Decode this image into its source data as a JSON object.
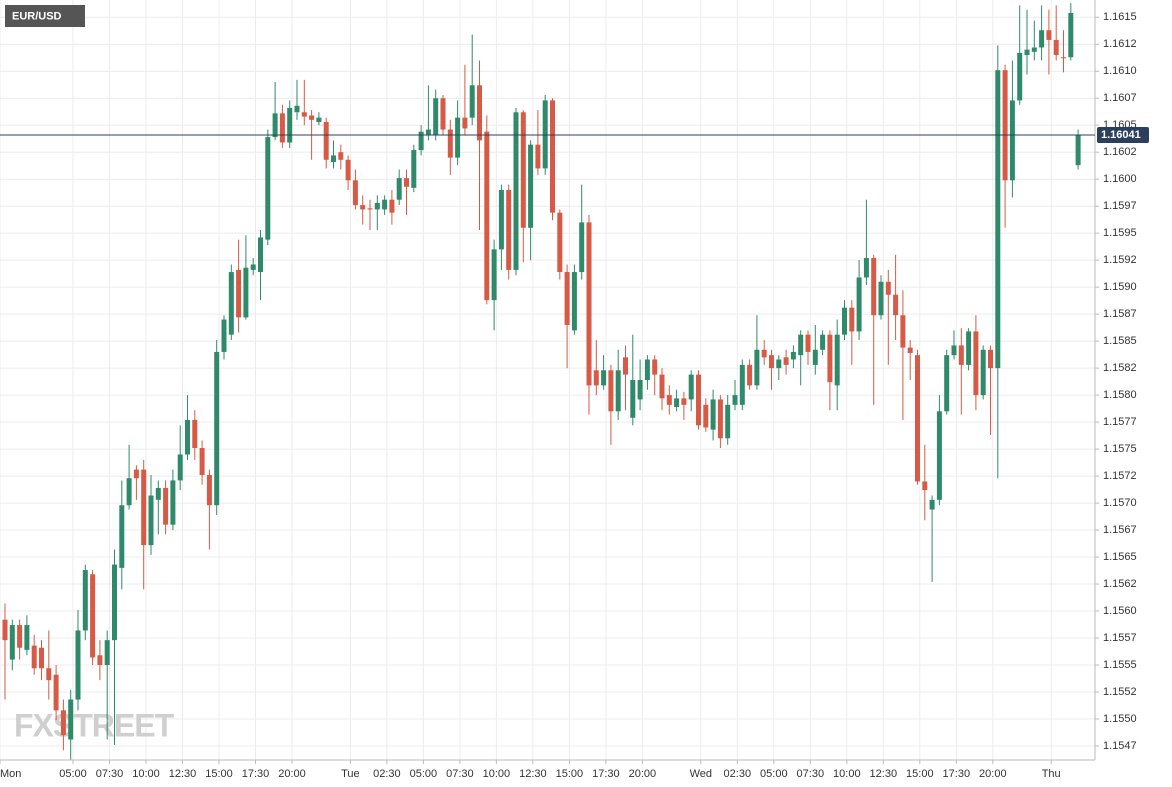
{
  "chart_data": {
    "type": "candlestick",
    "title": "EUR/USD",
    "watermark": "FXSTREET",
    "up_color": "#2f8a6b",
    "down_color": "#d65a45",
    "grid": true,
    "last_price": {
      "value": 1.16041,
      "label": "1.16041"
    },
    "xlim": [
      0,
      75
    ],
    "xticks": [
      {
        "value": 0,
        "label": "Mon"
      },
      {
        "value": 5,
        "label": "05:00"
      },
      {
        "value": 7.5,
        "label": "07:30"
      },
      {
        "value": 10,
        "label": "10:00"
      },
      {
        "value": 12.5,
        "label": "12:30"
      },
      {
        "value": 15,
        "label": "15:00"
      },
      {
        "value": 17.5,
        "label": "17:30"
      },
      {
        "value": 20,
        "label": "20:00"
      },
      {
        "value": 24,
        "label": "Tue"
      },
      {
        "value": 26.5,
        "label": "02:30"
      },
      {
        "value": 29,
        "label": "05:00"
      },
      {
        "value": 31.5,
        "label": "07:30"
      },
      {
        "value": 34,
        "label": "10:00"
      },
      {
        "value": 36.5,
        "label": "12:30"
      },
      {
        "value": 39,
        "label": "15:00"
      },
      {
        "value": 41.5,
        "label": "17:30"
      },
      {
        "value": 44,
        "label": "20:00"
      },
      {
        "value": 48,
        "label": "Wed"
      },
      {
        "value": 50.5,
        "label": "02:30"
      },
      {
        "value": 53,
        "label": "05:00"
      },
      {
        "value": 55.5,
        "label": "07:30"
      },
      {
        "value": 58,
        "label": "10:00"
      },
      {
        "value": 60.5,
        "label": "12:30"
      },
      {
        "value": 63,
        "label": "15:00"
      },
      {
        "value": 65.5,
        "label": "17:30"
      },
      {
        "value": 68,
        "label": "20:00"
      },
      {
        "value": 72,
        "label": "Thu"
      }
    ],
    "ylim": [
      1.15462,
      1.16166
    ],
    "yticks": [
      {
        "value": 1.1615,
        "label": "1.1615"
      },
      {
        "value": 1.16125,
        "label": "1.1612"
      },
      {
        "value": 1.161,
        "label": "1.1610"
      },
      {
        "value": 1.16075,
        "label": "1.1607"
      },
      {
        "value": 1.1605,
        "label": "1.1605"
      },
      {
        "value": 1.16025,
        "label": "1.1602"
      },
      {
        "value": 1.16,
        "label": "1.1600"
      },
      {
        "value": 1.15975,
        "label": "1.1597"
      },
      {
        "value": 1.1595,
        "label": "1.1595"
      },
      {
        "value": 1.15925,
        "label": "1.1592"
      },
      {
        "value": 1.159,
        "label": "1.1590"
      },
      {
        "value": 1.15875,
        "label": "1.1587"
      },
      {
        "value": 1.1585,
        "label": "1.1585"
      },
      {
        "value": 1.15825,
        "label": "1.1582"
      },
      {
        "value": 1.158,
        "label": "1.1580"
      },
      {
        "value": 1.15775,
        "label": "1.1577"
      },
      {
        "value": 1.1575,
        "label": "1.1575"
      },
      {
        "value": 1.15725,
        "label": "1.1572"
      },
      {
        "value": 1.157,
        "label": "1.1570"
      },
      {
        "value": 1.15675,
        "label": "1.1567"
      },
      {
        "value": 1.1565,
        "label": "1.1565"
      },
      {
        "value": 1.15625,
        "label": "1.1562"
      },
      {
        "value": 1.156,
        "label": "1.1560"
      },
      {
        "value": 1.15575,
        "label": "1.1557"
      },
      {
        "value": 1.1555,
        "label": "1.1555"
      },
      {
        "value": 1.15525,
        "label": "1.1552"
      },
      {
        "value": 1.155,
        "label": "1.1550"
      },
      {
        "value": 1.15475,
        "label": "1.1547"
      }
    ],
    "x": [
      0,
      0.5,
      1,
      1.5,
      2,
      2.5,
      3,
      3.5,
      4,
      4.5,
      5,
      5.5,
      6,
      6.5,
      7,
      7.5,
      8,
      8.5,
      9,
      9.5,
      10,
      10.5,
      11,
      11.5,
      12,
      12.5,
      13,
      13.5,
      14,
      14.5,
      15,
      15.5,
      16,
      16.5,
      17,
      17.5,
      18,
      18.5,
      19,
      19.5,
      20,
      20.5,
      21,
      21.5,
      22,
      22.5,
      23,
      23.5,
      24,
      24.5,
      25,
      25.5,
      26,
      26.5,
      27,
      27.5,
      28,
      28.5,
      29,
      29.5,
      30,
      30.5,
      31,
      31.5,
      32,
      32.5,
      33,
      33.5,
      34,
      34.5,
      35,
      35.5,
      36,
      36.5,
      37,
      37.5,
      38,
      38.5,
      39,
      39.5,
      40,
      40.5,
      41,
      41.5,
      42,
      42.5,
      43,
      43.5,
      44,
      44.5,
      45,
      45.5,
      46,
      46.5,
      47,
      47.5,
      48,
      48.5,
      49,
      49.5,
      50,
      50.5,
      51,
      51.5,
      52,
      52.5,
      53,
      53.5,
      54,
      54.5,
      55,
      55.5,
      56,
      56.5,
      57,
      57.5,
      58,
      58.5,
      59,
      59.5,
      60,
      60.5,
      61,
      61.5,
      62,
      62.5,
      63,
      63.5,
      64,
      64.5,
      65,
      65.5,
      66,
      66.5,
      67,
      67.5,
      68,
      68.5,
      69,
      69.5,
      70,
      70.5,
      71,
      71.5,
      72,
      72.5,
      73,
      73.5
    ],
    "open": [
      1.15592,
      1.15555,
      1.15587,
      1.15564,
      1.15568,
      1.15566,
      1.15547,
      1.15541,
      1.15508,
      1.15481,
      1.15518,
      1.15582,
      1.15634,
      1.15559,
      1.1555,
      1.15573,
      1.1564,
      1.15698,
      1.15731,
      1.15731,
      1.15661,
      1.15703,
      1.15714,
      1.1568,
      1.15721,
      1.15745,
      1.15777,
      1.15751,
      1.15726,
      1.15698,
      1.1584,
      1.15856,
      1.15916,
      1.15872,
      1.15916,
      1.15914,
      1.15944,
      1.16039,
      1.16061,
      1.16034,
      1.16062,
      1.16062,
      1.16059,
      1.16053,
      1.16053,
      1.16016,
      1.16025,
      1.16018,
      1.15999,
      1.15976,
      1.15973,
      1.15972,
      1.15972,
      1.15981,
      1.15981,
      1.16001,
      1.15992,
      1.16027,
      1.16041,
      1.16041,
      1.16075,
      1.16046,
      1.1602,
      1.16057,
      1.16057,
      1.16087,
      1.16044,
      1.15888,
      1.15935,
      1.1599,
      1.15916,
      1.16062,
      1.15955,
      1.16032,
      1.1601,
      1.16073,
      1.15969,
      1.15914,
      1.1586,
      1.15914,
      1.1596,
      1.15823,
      1.15809,
      1.15823,
      1.15785,
      1.15835,
      1.15779,
      1.15796,
      1.15814,
      1.15833,
      1.15819,
      1.158,
      1.15789,
      1.15797,
      1.15796,
      1.15819,
      1.15791,
      1.15768,
      1.15796,
      1.1576,
      1.15791,
      1.15791,
      1.15828,
      1.15809,
      1.15842,
      1.15837,
      1.15825,
      1.15835,
      1.15833,
      1.15837,
      1.15856,
      1.15828,
      1.15842,
      1.15856,
      1.15809,
      1.15856,
      1.15881,
      1.15859,
      1.15909,
      1.15927,
      1.15874,
      1.15905,
      1.15893,
      1.15874,
      1.15844,
      1.15837,
      1.1572,
      1.15694,
      1.15703,
      1.15785,
      1.15837,
      1.15846,
      1.15828,
      1.15859,
      1.158,
      1.15842,
      1.15825,
      1.16101,
      1.15999,
      1.16073,
      1.16115,
      1.16118,
      1.16122,
      1.16138,
      1.16129,
      1.16113,
      1.16113,
      1.16013
    ],
    "high": [
      1.15607,
      1.15592,
      1.15592,
      1.15596,
      1.15578,
      1.15573,
      1.15582,
      1.1555,
      1.15518,
      1.15527,
      1.15601,
      1.15643,
      1.15638,
      1.15573,
      1.15582,
      1.15657,
      1.15721,
      1.15754,
      1.15735,
      1.1574,
      1.15726,
      1.15721,
      1.15721,
      1.15731,
      1.15772,
      1.158,
      1.15786,
      1.15758,
      1.15731,
      1.15851,
      1.15874,
      1.15921,
      1.15944,
      1.15948,
      1.15927,
      1.15953,
      1.16046,
      1.1609,
      1.16069,
      1.16073,
      1.16092,
      1.16092,
      1.16064,
      1.16062,
      1.16057,
      1.16036,
      1.16032,
      1.16022,
      1.16009,
      1.15985,
      1.15981,
      1.15985,
      1.15985,
      1.1599,
      1.16009,
      1.16009,
      1.16032,
      1.1605,
      1.16087,
      1.16083,
      1.16078,
      1.16055,
      1.16073,
      1.16106,
      1.16134,
      1.1611,
      1.16059,
      1.15944,
      1.15995,
      1.15995,
      1.16066,
      1.16064,
      1.16036,
      1.16064,
      1.16078,
      1.16075,
      1.15972,
      1.15921,
      1.15921,
      1.15995,
      1.15967,
      1.15851,
      1.15837,
      1.15828,
      1.15842,
      1.15846,
      1.15856,
      1.15833,
      1.15837,
      1.15837,
      1.15825,
      1.15809,
      1.15805,
      1.15803,
      1.15823,
      1.15823,
      1.15797,
      1.15805,
      1.158,
      1.158,
      1.15814,
      1.15833,
      1.15833,
      1.15874,
      1.15851,
      1.15842,
      1.15837,
      1.15842,
      1.15846,
      1.1586,
      1.1586,
      1.15865,
      1.1586,
      1.1586,
      1.1587,
      1.15888,
      1.15888,
      1.15925,
      1.15981,
      1.1593,
      1.15911,
      1.15916,
      1.1593,
      1.15897,
      1.15851,
      1.15842,
      1.15754,
      1.15707,
      1.158,
      1.15842,
      1.1586,
      1.15862,
      1.15862,
      1.15874,
      1.15846,
      1.15846,
      1.16124,
      1.16106,
      1.1611,
      1.16161,
      1.16157,
      1.16147,
      1.16161,
      1.16157,
      1.16161,
      1.16138,
      1.16163,
      1.16046
    ],
    "low": [
      1.15518,
      1.15545,
      1.15555,
      1.15559,
      1.15541,
      1.15536,
      1.15518,
      1.15499,
      1.15471,
      1.15462,
      1.15508,
      1.15573,
      1.1555,
      1.15536,
      1.15481,
      1.15476,
      1.1562,
      1.15694,
      1.15703,
      1.1562,
      1.15652,
      1.15671,
      1.15671,
      1.15675,
      1.15712,
      1.1574,
      1.1574,
      1.15717,
      1.15657,
      1.15689,
      1.15833,
      1.15851,
      1.15858,
      1.1587,
      1.15911,
      1.15888,
      1.15939,
      1.16036,
      1.16029,
      1.16029,
      1.16055,
      1.1605,
      1.16018,
      1.1605,
      1.1601,
      1.1601,
      1.16009,
      1.1599,
      1.15972,
      1.15958,
      1.15953,
      1.15953,
      1.15967,
      1.15958,
      1.15976,
      1.15967,
      1.15988,
      1.16022,
      1.16036,
      1.16036,
      1.16041,
      1.16004,
      1.16013,
      1.16041,
      1.1605,
      1.15953,
      1.15884,
      1.1586,
      1.15916,
      1.15907,
      1.15911,
      1.15923,
      1.15925,
      1.16004,
      1.16004,
      1.15962,
      1.15907,
      1.15825,
      1.15856,
      1.15907,
      1.15782,
      1.158,
      1.15805,
      1.15754,
      1.15777,
      1.15786,
      1.15772,
      1.15786,
      1.15805,
      1.158,
      1.15786,
      1.15782,
      1.15785,
      1.15777,
      1.15785,
      1.15768,
      1.15766,
      1.15758,
      1.15751,
      1.15754,
      1.15786,
      1.15786,
      1.15805,
      1.15805,
      1.15828,
      1.15805,
      1.15814,
      1.15819,
      1.15825,
      1.15809,
      1.15828,
      1.15819,
      1.15837,
      1.15786,
      1.15786,
      1.15851,
      1.15828,
      1.15851,
      1.15902,
      1.15791,
      1.1587,
      1.15828,
      1.15851,
      1.15777,
      1.15814,
      1.15717,
      1.15684,
      1.15627,
      1.15698,
      1.15782,
      1.15833,
      1.15782,
      1.15823,
      1.15786,
      1.15796,
      1.15763,
      1.15723,
      1.15955,
      1.15983,
      1.16069,
      1.16097,
      1.1611,
      1.1611,
      1.16097,
      1.1611,
      1.16099,
      1.1611,
      1.16009
    ],
    "close": [
      1.15573,
      1.15587,
      1.15566,
      1.15587,
      1.15547,
      1.15547,
      1.15536,
      1.15508,
      1.15485,
      1.15518,
      1.15582,
      1.15638,
      1.15557,
      1.1555,
      1.15573,
      1.15643,
      1.15698,
      1.15723,
      1.15723,
      1.15661,
      1.15707,
      1.15714,
      1.1568,
      1.15721,
      1.15745,
      1.15777,
      1.15751,
      1.15726,
      1.15698,
      1.1584,
      1.1587,
      1.15914,
      1.15872,
      1.15918,
      1.15921,
      1.15946,
      1.16039,
      1.16061,
      1.16034,
      1.16066,
      1.16068,
      1.16058,
      1.16055,
      1.16057,
      1.16018,
      1.16022,
      1.16018,
      1.15999,
      1.15976,
      1.15972,
      1.15972,
      1.15978,
      1.15981,
      1.15969,
      1.16001,
      1.15993,
      1.16027,
      1.16044,
      1.16046,
      1.16075,
      1.16046,
      1.1602,
      1.16057,
      1.16047,
      1.16087,
      1.16036,
      1.15888,
      1.15935,
      1.1599,
      1.15916,
      1.16062,
      1.15955,
      1.16032,
      1.1601,
      1.16073,
      1.15969,
      1.15914,
      1.15865,
      1.15914,
      1.1596,
      1.15809,
      1.15809,
      1.15823,
      1.15785,
      1.15823,
      1.15819,
      1.15814,
      1.15814,
      1.15833,
      1.15819,
      1.15797,
      1.15791,
      1.15797,
      1.15791,
      1.15819,
      1.15772,
      1.1577,
      1.15796,
      1.1576,
      1.15791,
      1.158,
      1.15828,
      1.15809,
      1.15842,
      1.15835,
      1.15825,
      1.15833,
      1.15828,
      1.1584,
      1.15856,
      1.1584,
      1.15842,
      1.15856,
      1.15812,
      1.15856,
      1.15881,
      1.15859,
      1.15909,
      1.15927,
      1.15874,
      1.15905,
      1.15893,
      1.15874,
      1.15844,
      1.15839,
      1.1572,
      1.15712,
      1.15703,
      1.15785,
      1.15837,
      1.15846,
      1.15828,
      1.15859,
      1.158,
      1.15842,
      1.15825,
      1.16101,
      1.15999,
      1.16073,
      1.16117,
      1.1612,
      1.16122,
      1.16138,
      1.16129,
      1.16115,
      1.16112,
      1.16154,
      1.16041
    ]
  }
}
